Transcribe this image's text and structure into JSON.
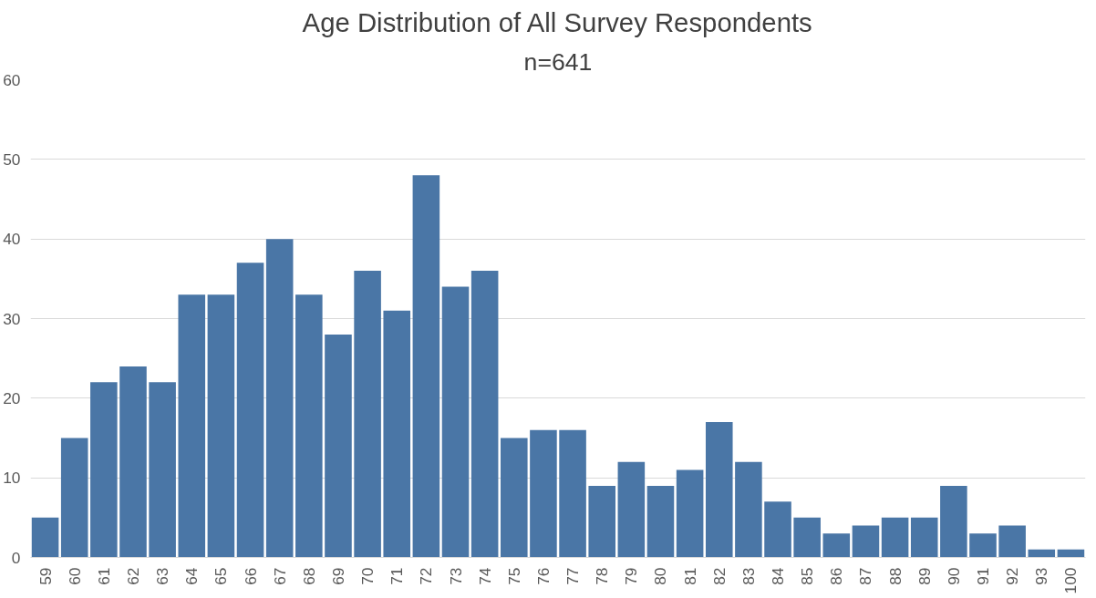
{
  "chart_data": {
    "type": "bar",
    "title": "Age Distribution of All Survey Respondents",
    "subtitle": "n=641",
    "categories": [
      "59",
      "60",
      "61",
      "62",
      "63",
      "64",
      "65",
      "66",
      "67",
      "68",
      "69",
      "70",
      "71",
      "72",
      "73",
      "74",
      "75",
      "76",
      "77",
      "78",
      "79",
      "80",
      "81",
      "82",
      "83",
      "84",
      "85",
      "86",
      "87",
      "88",
      "89",
      "90",
      "91",
      "92",
      "93",
      "100"
    ],
    "values": [
      5,
      15,
      22,
      24,
      22,
      33,
      33,
      37,
      40,
      33,
      28,
      36,
      31,
      48,
      34,
      36,
      15,
      16,
      16,
      9,
      12,
      9,
      11,
      17,
      12,
      7,
      5,
      3,
      4,
      5,
      5,
      9,
      3,
      4,
      1,
      1
    ],
    "color": "#4a76a6",
    "ylim": [
      0,
      60
    ],
    "yticks": [
      0,
      10,
      20,
      30,
      40,
      50,
      60
    ],
    "grid": "y"
  }
}
